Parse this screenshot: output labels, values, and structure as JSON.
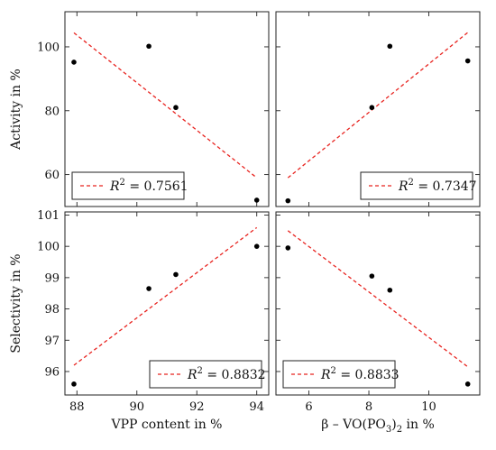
{
  "chart_data": [
    {
      "type": "scatter",
      "ylabel": "Activity in %",
      "xlim": [
        87.6,
        94.4
      ],
      "ylim": [
        50,
        111
      ],
      "xticks": [
        88,
        90,
        92,
        94
      ],
      "yticks": [
        60,
        80,
        100
      ],
      "show_xtick_labels": false,
      "show_ytick_labels": true,
      "points": [
        {
          "x": 87.9,
          "y": 95.2
        },
        {
          "x": 90.4,
          "y": 100.2
        },
        {
          "x": 91.3,
          "y": 81.0
        },
        {
          "x": 94.0,
          "y": 52.0
        }
      ],
      "fit": {
        "x": [
          87.9,
          94.0
        ],
        "y": [
          104.4,
          59.0
        ],
        "color": "#e8231f",
        "style": "dashed"
      },
      "legend": {
        "r2_value": "0.7561",
        "placement": "bottom-left"
      }
    },
    {
      "type": "scatter",
      "xlim": [
        4.9,
        11.7
      ],
      "ylim": [
        50,
        111
      ],
      "xticks": [
        6,
        8,
        10
      ],
      "yticks": [
        60,
        80,
        100
      ],
      "show_xtick_labels": false,
      "show_ytick_labels": false,
      "points": [
        {
          "x": 5.3,
          "y": 51.8
        },
        {
          "x": 8.1,
          "y": 81.0
        },
        {
          "x": 8.7,
          "y": 100.2
        },
        {
          "x": 11.3,
          "y": 95.6
        }
      ],
      "fit": {
        "x": [
          5.3,
          11.3
        ],
        "y": [
          59.0,
          104.5
        ],
        "color": "#e8231f",
        "style": "dashed"
      },
      "legend": {
        "r2_value": "0.7347",
        "placement": "bottom-right"
      }
    },
    {
      "type": "scatter",
      "xlabel": "VPP content in %",
      "ylabel": "Selectivity in %",
      "xlim": [
        87.6,
        94.4
      ],
      "ylim": [
        95.25,
        101.1
      ],
      "xticks": [
        88,
        90,
        92,
        94
      ],
      "yticks": [
        96,
        97,
        98,
        99,
        100,
        101
      ],
      "show_xtick_labels": true,
      "show_ytick_labels": true,
      "points": [
        {
          "x": 87.9,
          "y": 95.6
        },
        {
          "x": 90.4,
          "y": 98.65
        },
        {
          "x": 91.3,
          "y": 99.1
        },
        {
          "x": 94.0,
          "y": 100.0
        }
      ],
      "fit": {
        "x": [
          87.9,
          94.0
        ],
        "y": [
          96.2,
          100.6
        ],
        "color": "#e8231f",
        "style": "dashed"
      },
      "legend": {
        "r2_value": "0.8832",
        "placement": "bottom-right"
      }
    },
    {
      "type": "scatter",
      "xlabel_parts": {
        "prefix": "β – VO(PO",
        "sub1": "3",
        "mid": ")",
        "sub2": "2",
        "suffix": " in %"
      },
      "xlim": [
        4.9,
        11.7
      ],
      "ylim": [
        95.25,
        101.1
      ],
      "xticks": [
        6,
        8,
        10
      ],
      "yticks": [
        96,
        97,
        98,
        99,
        100,
        101
      ],
      "show_xtick_labels": true,
      "show_ytick_labels": false,
      "points": [
        {
          "x": 5.3,
          "y": 99.95
        },
        {
          "x": 8.1,
          "y": 99.05
        },
        {
          "x": 8.7,
          "y": 98.6
        },
        {
          "x": 11.3,
          "y": 95.6
        }
      ],
      "fit": {
        "x": [
          5.3,
          11.3
        ],
        "y": [
          100.5,
          96.15
        ],
        "color": "#e8231f",
        "style": "dashed"
      },
      "legend": {
        "r2_value": "0.8833",
        "placement": "bottom-left"
      }
    }
  ],
  "legend_label_prefix": "R",
  "legend_label_exponent": "2",
  "legend_label_equals": " = "
}
